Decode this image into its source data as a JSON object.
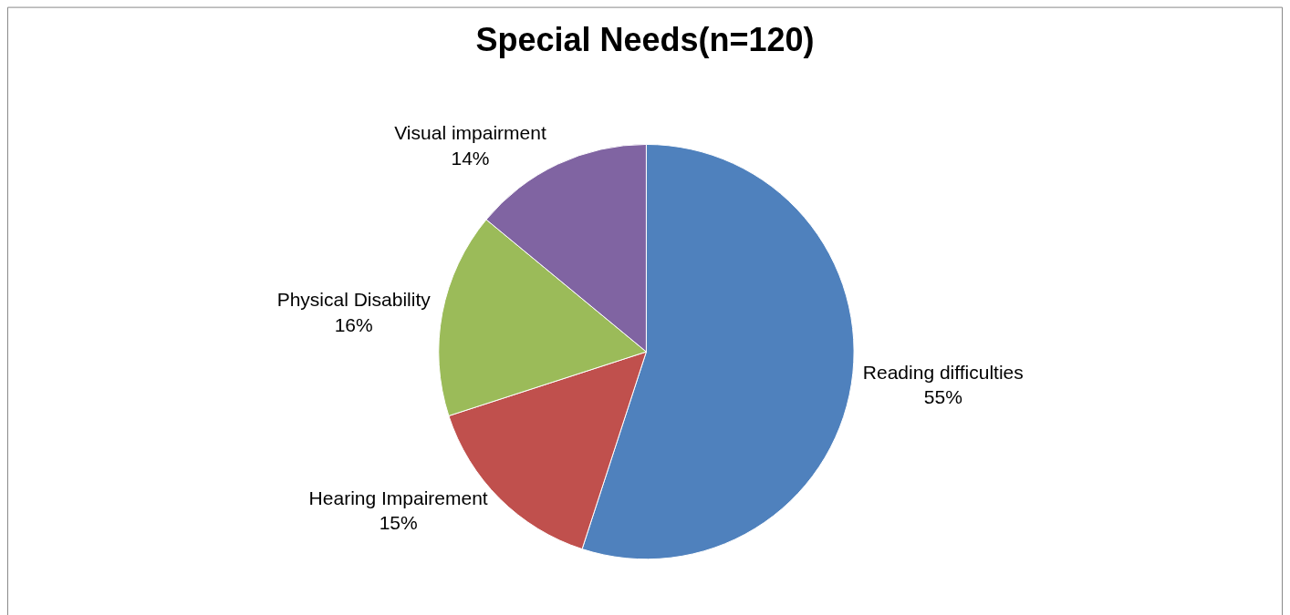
{
  "chart_data": {
    "type": "pie",
    "title": "Special Needs(n=120)",
    "categories": [
      "Reading difficulties",
      "Hearing Impairement",
      "Physical Disability",
      "Visual impairment"
    ],
    "values": [
      55,
      15,
      16,
      14
    ],
    "value_labels": [
      "55%",
      "15%",
      "16%",
      "14%"
    ],
    "colors": [
      "#4f81bd",
      "#c0504d",
      "#9bbb59",
      "#8064a2"
    ],
    "legend": false
  }
}
